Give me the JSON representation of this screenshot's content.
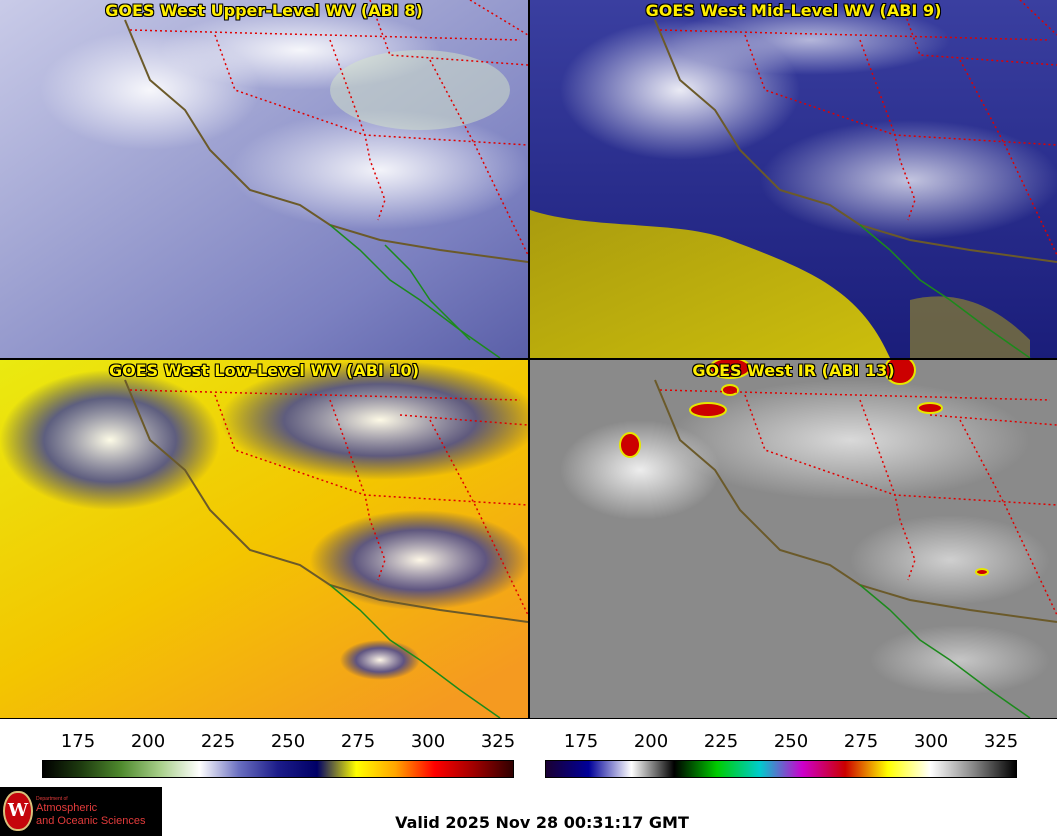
{
  "panels": [
    {
      "title": "GOES West Upper-Level WV (ABI 8)",
      "scheme": "upper-wv"
    },
    {
      "title": "GOES West Mid-Level WV (ABI 9)",
      "scheme": "mid-wv"
    },
    {
      "title": "GOES West Low-Level WV (ABI 10)",
      "scheme": "low-wv"
    },
    {
      "title": "GOES West IR (ABI 13)",
      "scheme": "ir"
    }
  ],
  "colorbars": {
    "wv": {
      "ticks": [
        "175",
        "200",
        "225",
        "250",
        "275",
        "300",
        "325"
      ],
      "stops": [
        "#000000",
        "#1f3d10",
        "#4f8a2e",
        "#a8cf8a",
        "#ffffff",
        "#6a6fc0",
        "#1c1c8a",
        "#000066",
        "#ffff00",
        "#ffa500",
        "#ff0000",
        "#a00000",
        "#300000"
      ]
    },
    "ir": {
      "ticks": [
        "175",
        "200",
        "225",
        "250",
        "275",
        "300",
        "325"
      ],
      "stops": [
        "#1a0033",
        "#000099",
        "#ffffff",
        "#000000",
        "#00cc00",
        "#00cccc",
        "#cc00cc",
        "#cc0000",
        "#ffff00",
        "#ffffff",
        "#888888",
        "#000000"
      ]
    }
  },
  "logo": {
    "line1": "Department of",
    "line2": "Atmospheric",
    "line3": "and Oceanic Sciences",
    "seal": "W"
  },
  "footer": {
    "valid": "Valid 2025 Nov 28 00:31:17 GMT"
  },
  "colors": {
    "title": "#ffee00",
    "border_lines": "#e00000",
    "coastline": "#6b5a2a",
    "baja_coast": "#1c8a1c"
  }
}
